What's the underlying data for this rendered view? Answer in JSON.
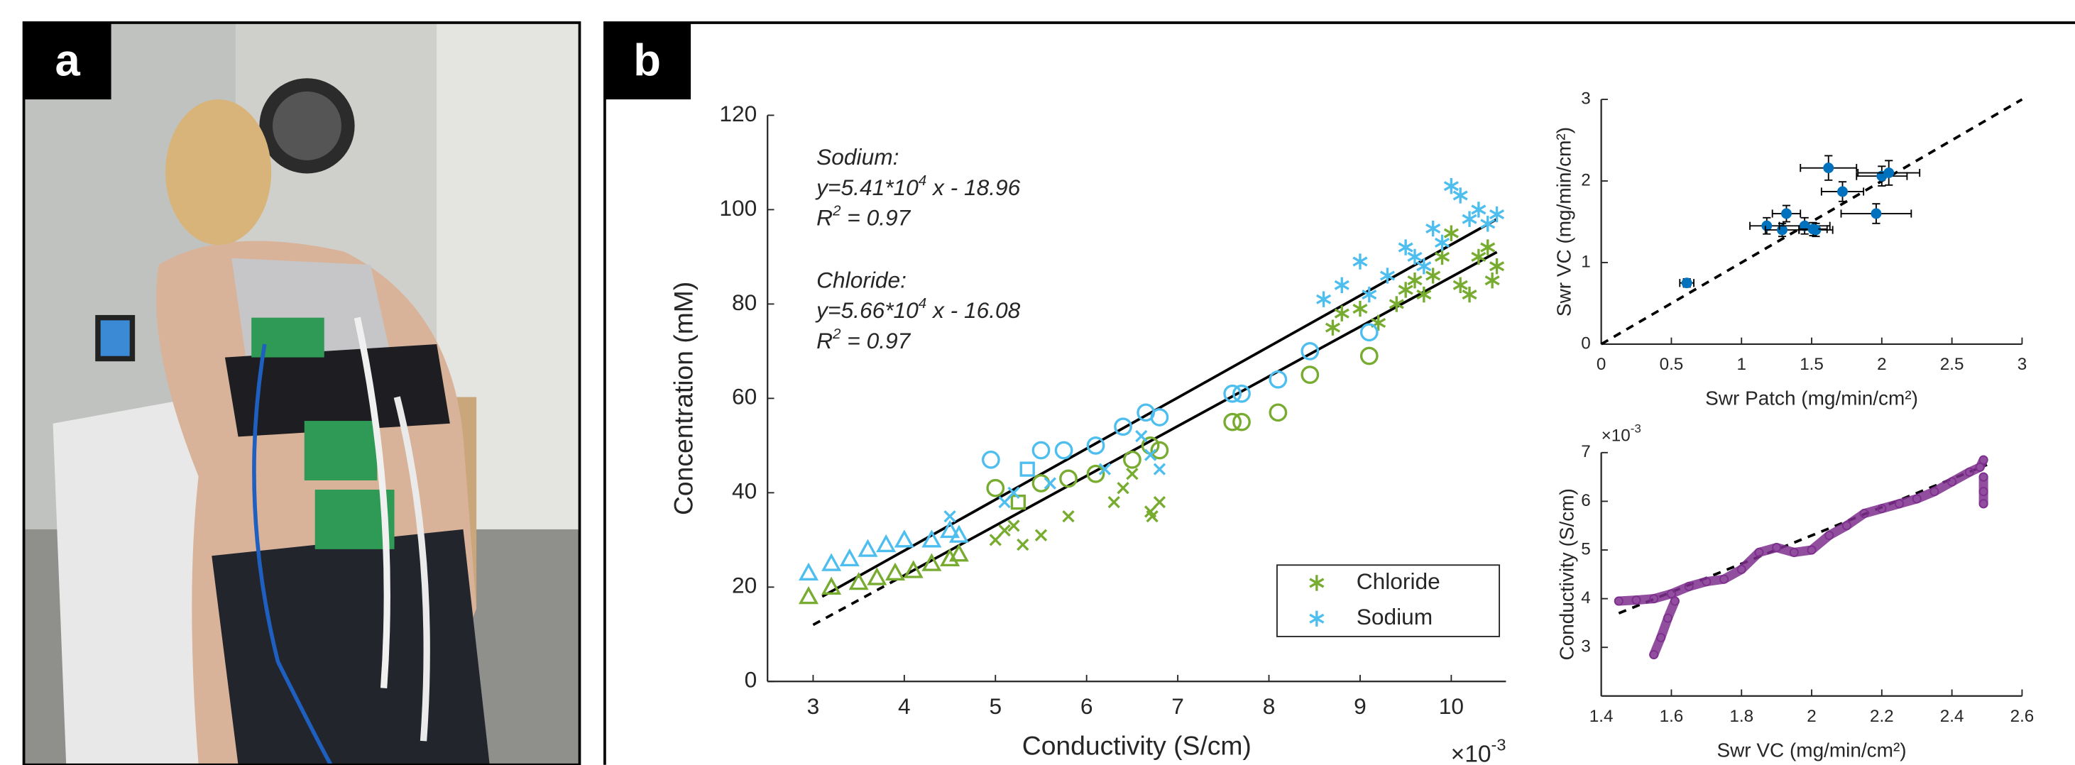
{
  "panel_labels": [
    "a",
    "b"
  ],
  "chart_data": [
    {
      "type": "scatter",
      "xlabel": "Conductivity (S/cm)",
      "ylabel": "Concentration (mM)",
      "x_exponent": {
        "base": "×10",
        "power": "-3"
      },
      "xlim": [
        2.5,
        10.6
      ],
      "xticks": [
        3,
        4,
        5,
        6,
        7,
        8,
        9,
        10
      ],
      "ylim": [
        0,
        120
      ],
      "yticks": [
        0,
        20,
        40,
        60,
        80,
        100,
        120
      ],
      "legend": "lower right",
      "annotations": [
        {
          "parts": [
            {
              "text": "Sodium:"
            }
          ]
        },
        {
          "parts": [
            {
              "text": "y=5.41*10"
            },
            {
              "text": "4",
              "sup": true
            },
            {
              "text": " x - 18.96"
            }
          ]
        },
        {
          "parts": [
            {
              "text": "R"
            },
            {
              "text": "2",
              "sup": true
            },
            {
              "text": " = 0.97"
            }
          ]
        },
        {
          "parts": [
            {
              "text": "Chloride:"
            }
          ]
        },
        {
          "parts": [
            {
              "text": "y=5.66*10"
            },
            {
              "text": "4",
              "sup": true
            },
            {
              "text": " x - 16.08"
            }
          ]
        },
        {
          "parts": [
            {
              "text": "R"
            },
            {
              "text": "2",
              "sup": true
            },
            {
              "text": " = 0.97"
            }
          ]
        }
      ],
      "series": [
        {
          "name": "Chloride",
          "color": "#77ac30",
          "x": [
            2.95,
            3.2,
            3.5,
            3.7,
            3.9,
            4.1,
            4.3,
            4.5,
            4.6,
            5.0,
            5.1,
            5.2,
            5.3,
            5.5,
            5.8,
            6.3,
            6.4,
            6.5,
            6.7,
            6.8,
            6.72,
            5.0,
            5.5,
            5.8,
            6.1,
            6.5,
            6.7,
            6.8,
            7.6,
            7.7,
            8.1,
            8.45,
            9.1,
            5.25,
            8.7,
            8.8,
            9.0,
            9.2,
            9.4,
            9.5,
            9.6,
            9.7,
            9.8,
            9.9,
            10.0,
            10.1,
            10.2,
            10.3,
            10.4,
            10.45,
            10.5
          ],
          "values": [
            18,
            20,
            21,
            22,
            23,
            23.5,
            25,
            26,
            27,
            30,
            32,
            33,
            29,
            31,
            35,
            38,
            41,
            44,
            36,
            38,
            35,
            41,
            42,
            43,
            44,
            47,
            50,
            49,
            55,
            55,
            57,
            65,
            69,
            38,
            75,
            78,
            79,
            76,
            80,
            83,
            85,
            82,
            86,
            90,
            95,
            84,
            82,
            90,
            92,
            85,
            88
          ],
          "markers": [
            "triangle",
            "triangle",
            "triangle",
            "triangle",
            "triangle",
            "triangle",
            "triangle",
            "triangle",
            "triangle",
            "x",
            "x",
            "x",
            "x",
            "x",
            "x",
            "x",
            "x",
            "x",
            "x",
            "x",
            "x",
            "circle",
            "circle",
            "circle",
            "circle",
            "circle",
            "circle",
            "circle",
            "circle",
            "circle",
            "circle",
            "circle",
            "circle",
            "square",
            "asterisk",
            "asterisk",
            "asterisk",
            "asterisk",
            "asterisk",
            "asterisk",
            "asterisk",
            "asterisk",
            "asterisk",
            "asterisk",
            "asterisk",
            "asterisk",
            "asterisk",
            "asterisk",
            "asterisk",
            "asterisk",
            "asterisk"
          ]
        },
        {
          "name": "Sodium",
          "color": "#4dbeee",
          "x": [
            2.95,
            3.2,
            3.4,
            3.6,
            3.8,
            4.0,
            4.3,
            4.5,
            4.6,
            4.5,
            5.1,
            5.2,
            5.6,
            6.2,
            6.6,
            6.7,
            6.8,
            4.95,
            5.5,
            5.75,
            6.1,
            6.4,
            6.65,
            6.8,
            7.6,
            7.7,
            8.1,
            8.45,
            9.1,
            5.35,
            8.6,
            8.8,
            9.0,
            9.1,
            9.3,
            9.5,
            9.6,
            9.7,
            9.8,
            9.9,
            10.0,
            10.1,
            10.2,
            10.3,
            10.4,
            10.5
          ],
          "values": [
            23,
            25,
            26,
            28,
            29,
            30,
            30,
            32,
            31,
            35,
            38,
            40,
            42,
            45,
            52,
            48,
            45,
            47,
            49,
            49,
            50,
            54,
            57,
            56,
            61,
            61,
            64,
            70,
            74,
            45,
            81,
            84,
            89,
            82,
            86,
            92,
            90,
            88,
            96,
            93,
            105,
            103,
            98,
            100,
            97,
            99
          ],
          "markers": [
            "triangle",
            "triangle",
            "triangle",
            "triangle",
            "triangle",
            "triangle",
            "triangle",
            "triangle",
            "triangle",
            "x",
            "x",
            "x",
            "x",
            "x",
            "x",
            "x",
            "x",
            "circle",
            "circle",
            "circle",
            "circle",
            "circle",
            "circle",
            "circle",
            "circle",
            "circle",
            "circle",
            "circle",
            "circle",
            "square",
            "asterisk",
            "asterisk",
            "asterisk",
            "asterisk",
            "asterisk",
            "asterisk",
            "asterisk",
            "asterisk",
            "asterisk",
            "asterisk",
            "asterisk",
            "asterisk",
            "asterisk",
            "asterisk",
            "asterisk",
            "asterisk"
          ]
        }
      ],
      "lines": [
        {
          "x": [
            3.1,
            10.5
          ],
          "values": [
            18,
            98
          ],
          "dash": false
        },
        {
          "x": [
            3.0,
            4.0
          ],
          "values": [
            12,
            22.5
          ],
          "dash": true
        },
        {
          "x": [
            4.0,
            10.5
          ],
          "values": [
            22.5,
            91
          ],
          "dash": false
        }
      ]
    },
    {
      "type": "scatter",
      "xlabel": "Swr Patch (mg/min/cm²)",
      "ylabel": "Swr VC (mg/min/cm²)",
      "xlim": [
        0,
        3
      ],
      "xticks": [
        0,
        0.5,
        1,
        1.5,
        2,
        2.5,
        3
      ],
      "ylim": [
        0,
        3
      ],
      "yticks": [
        0,
        1,
        2,
        3
      ],
      "series": [
        {
          "color": "#0072bd",
          "x": [
            0.61,
            1.62,
            1.72,
            1.18,
            1.32,
            1.29,
            1.45,
            1.53,
            1.96,
            2.0,
            2.05,
            1.51
          ],
          "values": [
            0.75,
            2.16,
            1.87,
            1.45,
            1.6,
            1.4,
            1.45,
            1.4,
            1.6,
            2.06,
            2.1,
            1.41
          ],
          "xerr": [
            0.05,
            0.2,
            0.15,
            0.12,
            0.1,
            0.12,
            0.18,
            0.12,
            0.25,
            0.18,
            0.22,
            0.1
          ],
          "yerr": [
            0.05,
            0.15,
            0.12,
            0.1,
            0.1,
            0.08,
            0.1,
            0.08,
            0.12,
            0.12,
            0.15,
            0.08
          ]
        }
      ],
      "lines": [
        {
          "x": [
            0,
            3
          ],
          "values": [
            0,
            3
          ],
          "dash": true
        }
      ]
    },
    {
      "type": "line",
      "xlabel": "Swr VC (mg/min/cm²)",
      "ylabel": "Conductivity (S/cm)",
      "y_exponent": {
        "base": "×10",
        "power": "-3"
      },
      "xlim": [
        1.4,
        2.6
      ],
      "xticks": [
        1.4,
        1.6,
        1.8,
        2,
        2.2,
        2.4,
        2.6
      ],
      "ylim": [
        2,
        7
      ],
      "yticks": [
        3,
        4,
        5,
        6,
        7
      ],
      "series": [
        {
          "color": "#7e2f8e",
          "x": [
            1.45,
            1.5,
            1.55,
            1.6,
            1.65,
            1.7,
            1.75,
            1.8,
            1.85,
            1.9,
            1.95,
            2.0,
            2.05,
            2.1,
            2.15,
            2.2,
            2.25,
            2.3,
            2.35,
            2.4,
            2.45,
            2.48,
            2.49
          ],
          "values": [
            3.95,
            3.97,
            4.0,
            4.1,
            4.25,
            4.35,
            4.4,
            4.6,
            4.95,
            5.05,
            4.95,
            5.0,
            5.3,
            5.5,
            5.75,
            5.85,
            5.95,
            6.05,
            6.2,
            6.4,
            6.6,
            6.7,
            6.85
          ]
        },
        {
          "color": "#7e2f8e",
          "x": [
            1.55,
            1.57,
            1.59,
            1.61
          ],
          "values": [
            2.85,
            3.2,
            3.6,
            3.95
          ]
        },
        {
          "color": "#7e2f8e",
          "x": [
            2.49,
            2.49,
            2.49
          ],
          "values": [
            6.5,
            6.2,
            5.95
          ]
        }
      ],
      "lines": [
        {
          "x": [
            1.45,
            2.5
          ],
          "values": [
            3.7,
            6.75
          ],
          "dash": true
        }
      ]
    }
  ]
}
